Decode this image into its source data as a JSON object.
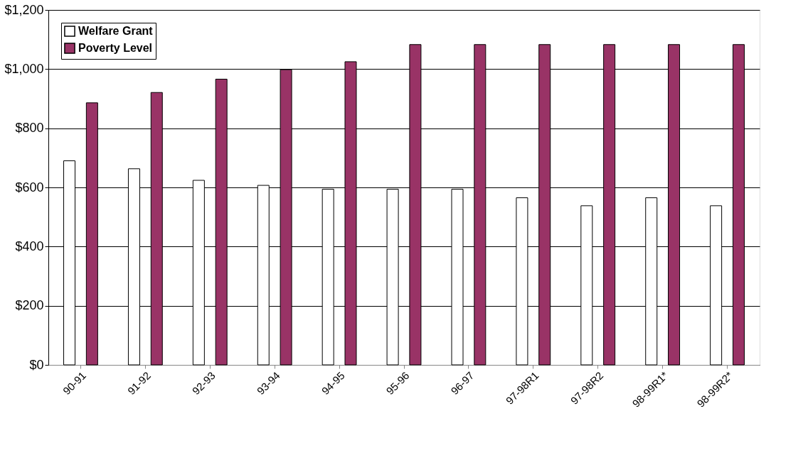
{
  "chart_data": {
    "type": "bar",
    "categories": [
      "90-91",
      "91-92",
      "92-93",
      "93-94",
      "94-95",
      "95-96",
      "96-97",
      "97-98R1",
      "97-98R2",
      "98-99R1*",
      "98-99R2*"
    ],
    "series": [
      {
        "name": "Welfare Grant",
        "color": "#ffffff",
        "values": [
          690,
          663,
          624,
          607,
          594,
          594,
          594,
          565,
          538,
          565,
          538
        ]
      },
      {
        "name": "Poverty Level",
        "color": "#993366",
        "values": [
          886,
          921,
          966,
          998,
          1025,
          1083,
          1083,
          1083,
          1083,
          1083,
          1083
        ]
      }
    ],
    "ylim": [
      0,
      1200
    ],
    "yticks": [
      {
        "value": 0,
        "label": "$0"
      },
      {
        "value": 200,
        "label": "$200"
      },
      {
        "value": 400,
        "label": "$400"
      },
      {
        "value": 600,
        "label": "$600"
      },
      {
        "value": 800,
        "label": "$800"
      },
      {
        "value": 1000,
        "label": "$1,000"
      },
      {
        "value": 1200,
        "label": "$1,200"
      }
    ],
    "grid": "y",
    "legend": "top left"
  }
}
